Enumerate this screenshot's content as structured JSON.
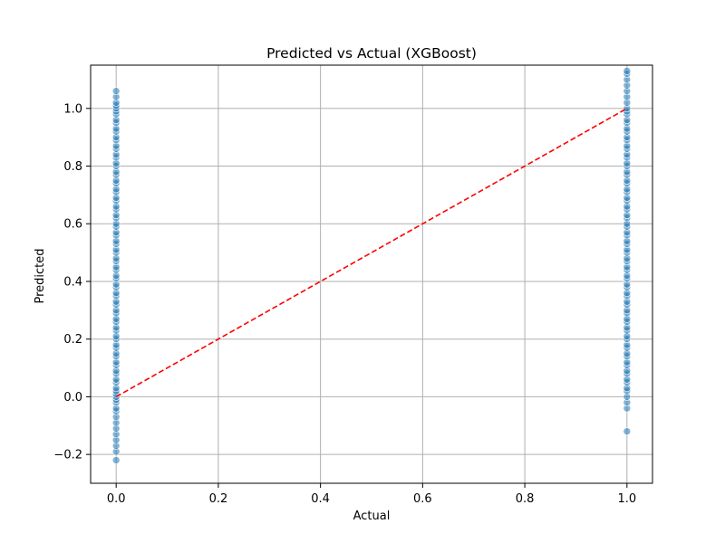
{
  "chart_data": {
    "type": "scatter",
    "title": "Predicted vs Actual (XGBoost)",
    "xlabel": "Actual",
    "ylabel": "Predicted",
    "xlim": [
      -0.05,
      1.05
    ],
    "ylim": [
      -0.3,
      1.15
    ],
    "xticks": [
      0.0,
      0.2,
      0.4,
      0.6,
      0.8,
      1.0
    ],
    "yticks": [
      -0.2,
      0.0,
      0.2,
      0.4,
      0.6,
      0.8,
      1.0
    ],
    "xtick_labels": [
      "0.0",
      "0.2",
      "0.4",
      "0.6",
      "0.8",
      "1.0"
    ],
    "ytick_labels": [
      "−0.2",
      "0.0",
      "0.2",
      "0.4",
      "0.6",
      "0.8",
      "1.0"
    ],
    "grid": true,
    "point_color": "#1f77b4",
    "reference_line_color": "#ff0000",
    "series": [
      {
        "x": 0,
        "y": [
          -0.22,
          -0.19,
          -0.17,
          -0.15,
          -0.13,
          -0.11,
          -0.09,
          -0.07,
          -0.05,
          -0.04,
          -0.02,
          -0.01,
          0.0,
          0.01,
          0.02,
          0.03,
          0.05,
          0.06,
          0.08,
          0.09,
          0.11,
          0.12,
          0.14,
          0.15,
          0.17,
          0.18,
          0.2,
          0.21,
          0.23,
          0.24,
          0.26,
          0.27,
          0.29,
          0.3,
          0.32,
          0.33,
          0.35,
          0.36,
          0.38,
          0.39,
          0.41,
          0.42,
          0.44,
          0.45,
          0.47,
          0.48,
          0.5,
          0.51,
          0.53,
          0.54,
          0.56,
          0.57,
          0.59,
          0.6,
          0.62,
          0.63,
          0.65,
          0.66,
          0.68,
          0.69,
          0.71,
          0.72,
          0.74,
          0.75,
          0.77,
          0.78,
          0.8,
          0.81,
          0.83,
          0.84,
          0.86,
          0.87,
          0.89,
          0.9,
          0.92,
          0.93,
          0.95,
          0.96,
          0.98,
          0.99,
          1.0,
          1.01,
          1.02,
          1.04,
          1.06
        ]
      },
      {
        "x": 1,
        "y": [
          -0.12,
          -0.04,
          -0.02,
          0.0,
          0.02,
          0.03,
          0.05,
          0.06,
          0.08,
          0.09,
          0.11,
          0.12,
          0.14,
          0.15,
          0.17,
          0.18,
          0.2,
          0.21,
          0.23,
          0.24,
          0.26,
          0.27,
          0.29,
          0.3,
          0.32,
          0.33,
          0.35,
          0.36,
          0.38,
          0.39,
          0.41,
          0.42,
          0.44,
          0.45,
          0.47,
          0.48,
          0.5,
          0.51,
          0.53,
          0.54,
          0.56,
          0.57,
          0.59,
          0.6,
          0.62,
          0.63,
          0.65,
          0.66,
          0.68,
          0.69,
          0.71,
          0.72,
          0.74,
          0.75,
          0.77,
          0.78,
          0.8,
          0.81,
          0.83,
          0.84,
          0.86,
          0.87,
          0.89,
          0.9,
          0.92,
          0.93,
          0.95,
          0.96,
          0.98,
          0.99,
          1.0,
          1.02,
          1.04,
          1.06,
          1.08,
          1.1,
          1.12,
          1.13
        ]
      }
    ],
    "reference_line": {
      "x": [
        0,
        1
      ],
      "y": [
        0,
        1
      ],
      "style": "dashed"
    }
  }
}
